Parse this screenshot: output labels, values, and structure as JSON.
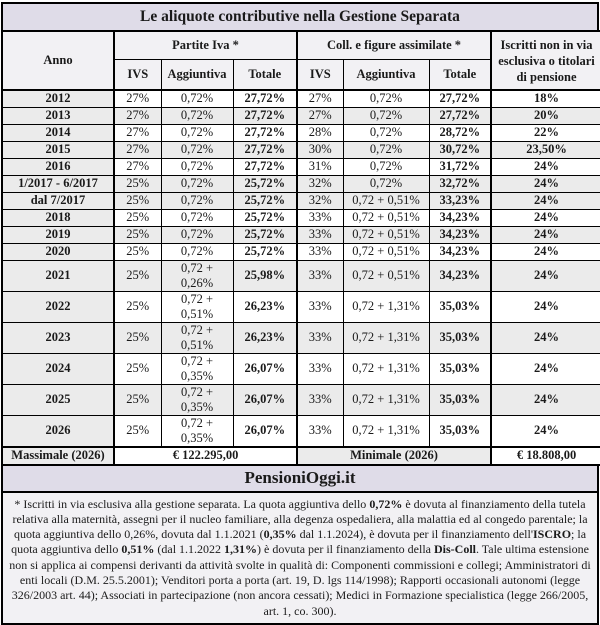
{
  "title": "Le aliquote contributive nella Gestione Separata",
  "brand": "PensioniOggi.it",
  "colors": {
    "lavender_bar": "#dfdce8",
    "header_bg": "#f2f1f4",
    "shaded_row": "#ebebeb",
    "footnote_bg": "#f2f1f4",
    "border": "#000000",
    "text": "#1a1a1a"
  },
  "table": {
    "header": {
      "anno": "Anno",
      "group_piva": "Partite Iva *",
      "group_coll": "Coll. e figure assimilate *",
      "iscritti": "Iscritti non in via esclusiva o titolari di pensione",
      "sub": [
        "IVS",
        "Aggiuntiva",
        "Totale",
        "IVS",
        "Aggiuntiva",
        "Totale"
      ]
    },
    "rows": [
      {
        "anno": "2012",
        "cells": [
          "27%",
          "0,72%",
          "27,72%",
          "27%",
          "0,72%",
          "27,72%",
          "18%"
        ],
        "shaded": false
      },
      {
        "anno": "2013",
        "cells": [
          "27%",
          "0,72%",
          "27,72%",
          "27%",
          "0,72%",
          "27,72%",
          "20%"
        ],
        "shaded": true
      },
      {
        "anno": "2014",
        "cells": [
          "27%",
          "0,72%",
          "27,72%",
          "28%",
          "0,72%",
          "28,72%",
          "22%"
        ],
        "shaded": false
      },
      {
        "anno": "2015",
        "cells": [
          "27%",
          "0,72%",
          "27,72%",
          "30%",
          "0,72%",
          "30,72%",
          "23,50%"
        ],
        "shaded": true
      },
      {
        "anno": "2016",
        "cells": [
          "27%",
          "0,72%",
          "27,72%",
          "31%",
          "0,72%",
          "31,72%",
          "24%"
        ],
        "shaded": false
      },
      {
        "anno": "1/2017 - 6/2017",
        "cells": [
          "25%",
          "0,72%",
          "25,72%",
          "32%",
          "0,72%",
          "32,72%",
          "24%"
        ],
        "shaded": true
      },
      {
        "anno": "dal 7/2017",
        "cells": [
          "25%",
          "0,72%",
          "25,72%",
          "32%",
          "0,72 + 0,51%",
          "33,23%",
          "24%"
        ],
        "shaded": true
      },
      {
        "anno": "2018",
        "cells": [
          "25%",
          "0,72%",
          "25,72%",
          "33%",
          "0,72 + 0,51%",
          "34,23%",
          "24%"
        ],
        "shaded": false
      },
      {
        "anno": "2019",
        "cells": [
          "25%",
          "0,72%",
          "25,72%",
          "33%",
          "0,72 + 0,51%",
          "34,23%",
          "24%"
        ],
        "shaded": true
      },
      {
        "anno": "2020",
        "cells": [
          "25%",
          "0,72%",
          "25,72%",
          "33%",
          "0,72 + 0,51%",
          "34,23%",
          "24%"
        ],
        "shaded": false
      },
      {
        "anno": "2021",
        "cells": [
          "25%",
          "0,72 + 0,26%",
          "25,98%",
          "33%",
          "0,72 + 0,51%",
          "34,23%",
          "24%"
        ],
        "shaded": true
      },
      {
        "anno": "2022",
        "cells": [
          "25%",
          "0,72 + 0,51%",
          "26,23%",
          "33%",
          "0,72 + 1,31%",
          "35,03%",
          "24%"
        ],
        "shaded": false
      },
      {
        "anno": "2023",
        "cells": [
          "25%",
          "0,72 + 0,51%",
          "26,23%",
          "33%",
          "0,72 + 1,31%",
          "35,03%",
          "24%"
        ],
        "shaded": true
      },
      {
        "anno": "2024",
        "cells": [
          "25%",
          "0,72 + 0,35%",
          "26,07%",
          "33%",
          "0,72 + 1,31%",
          "35,03%",
          "24%"
        ],
        "shaded": false
      },
      {
        "anno": "2025",
        "cells": [
          "25%",
          "0,72 + 0,35%",
          "26,07%",
          "33%",
          "0,72 + 1,31%",
          "35,03%",
          "24%"
        ],
        "shaded": true
      },
      {
        "anno": "2026",
        "cells": [
          "25%",
          "0,72 + 0,35%",
          "26,07%",
          "33%",
          "0,72 + 1,31%",
          "35,03%",
          "24%"
        ],
        "shaded": false
      }
    ],
    "summary": {
      "massimale_label": "Massimale (2026)",
      "massimale_value": "€ 122.295,00",
      "minimale_label": "Minimale (2026)",
      "minimale_value": "€ 18.808,00"
    }
  },
  "footnote_segments": [
    {
      "text": "* Iscritti in via esclusiva alla gestione separata. La quota aggiuntiva dello ",
      "bold": false
    },
    {
      "text": "0,72%",
      "bold": true
    },
    {
      "text": " è dovuta al finanziamento della tutela relativa alla maternità, assegni per il nucleo familiare, alla degenza ospedaliera, alla malattia ed al congedo parentale; la quota aggiuntiva dello 0,26%, dovuta dal 1.1.2021 (",
      "bold": false
    },
    {
      "text": "0,35%",
      "bold": true
    },
    {
      "text": " dal 1.1.2024), è dovuta per il finanziamento dell'",
      "bold": false
    },
    {
      "text": "ISCRO",
      "bold": true
    },
    {
      "text": "; la quota aggiuntiva dello ",
      "bold": false
    },
    {
      "text": "0,51%",
      "bold": true
    },
    {
      "text": " (dal 1.1.2022 ",
      "bold": false
    },
    {
      "text": "1,31%",
      "bold": true
    },
    {
      "text": ") è dovuta per il finanziamento della ",
      "bold": false
    },
    {
      "text": "Dis-Coll",
      "bold": true
    },
    {
      "text": ". Tale ultima estensione non si applica ai compensi derivanti da attività svolte in qualità di:  Componenti commissioni e collegi; Amministratori di enti locali (D.M. 25.5.2001);  Venditori porta a porta (art. 19, D. lgs 114/1998); Rapporti occasionali autonomi (legge 326/2003 art. 44);  Associati in partecipazione (non ancora cessati);  Medici in Formazione specialistica (legge 266/2005, art. 1, co. 300).",
      "bold": false
    }
  ]
}
